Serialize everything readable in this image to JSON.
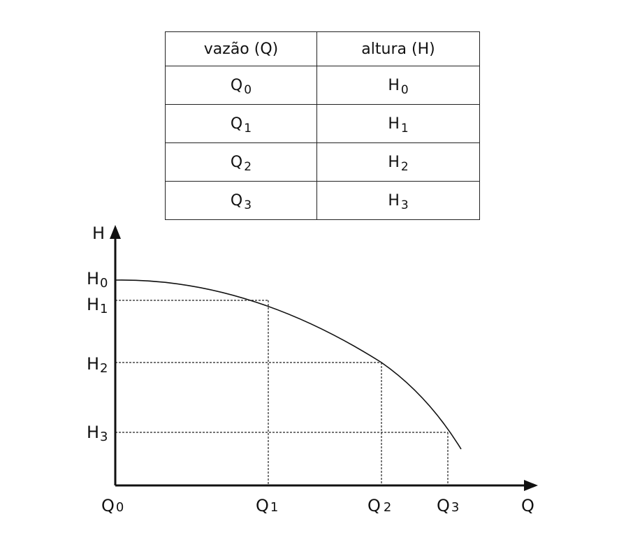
{
  "table": {
    "header": {
      "q": "vazão (Q)",
      "h": "altura  (H)"
    },
    "rows": [
      {
        "q": "Q",
        "q_sub": "0",
        "h": "H",
        "h_sub": "0"
      },
      {
        "q": "Q",
        "q_sub": "1",
        "h": "H",
        "h_sub": "1"
      },
      {
        "q": "Q",
        "q_sub": "2",
        "h": "H",
        "h_sub": "2"
      },
      {
        "q": "Q",
        "q_sub": "3",
        "h": "H",
        "h_sub": "3"
      }
    ]
  },
  "graph": {
    "y_axis_label": "H",
    "x_axis_label": "Q",
    "y_ticks": [
      {
        "main": "H",
        "sub": "0"
      },
      {
        "main": "H",
        "sub": "1"
      },
      {
        "main": "H",
        "sub": "2"
      },
      {
        "main": "H",
        "sub": "3"
      }
    ],
    "x_ticks": [
      {
        "main": "Q",
        "sub": "0"
      },
      {
        "main": "Q",
        "sub": "1"
      },
      {
        "main": "Q",
        "sub": "2"
      },
      {
        "main": "Q",
        "sub": "3"
      }
    ],
    "colors": {
      "line": "#111111",
      "grid": "#222222"
    }
  }
}
